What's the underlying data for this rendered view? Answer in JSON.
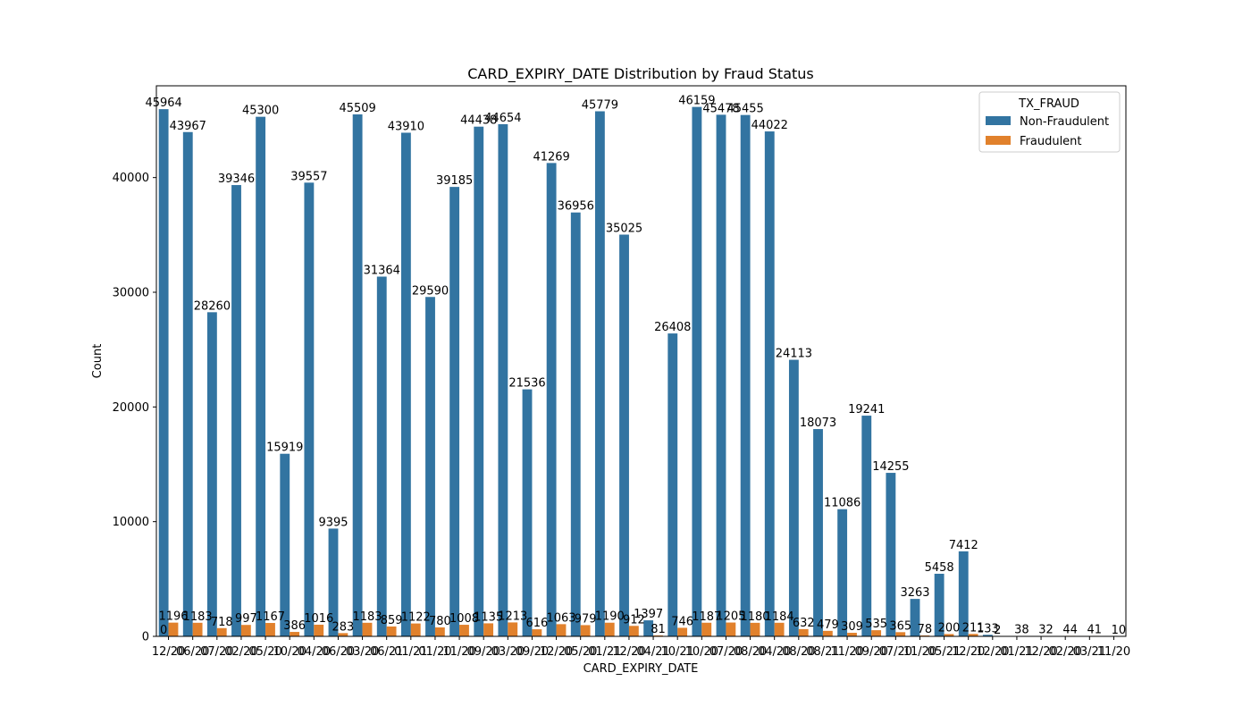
{
  "chart_data": {
    "type": "bar",
    "title": "CARD_EXPIRY_DATE Distribution by Fraud Status",
    "xlabel": "CARD_EXPIRY_DATE",
    "ylabel": "Count",
    "ylim": [
      0,
      48000
    ],
    "yticks": [
      0,
      10000,
      20000,
      30000,
      40000
    ],
    "grid": false,
    "legend": {
      "title": "TX_FRAUD",
      "placement": "top-right"
    },
    "categories": [
      "12/20",
      "06/20",
      "07/20",
      "02/20",
      "05/20",
      "10/20",
      "04/20",
      "06/20",
      "03/20",
      "06/21",
      "01/21",
      "01/20",
      "11/20",
      "09/20",
      "03/20",
      "09/20",
      "12/20",
      "05/20",
      "01/21",
      "12/20",
      "04/21",
      "10/21",
      "10/20",
      "07/20",
      "08/20",
      "04/20",
      "08/20",
      "08/21",
      "11/20",
      "09/20",
      "07/20",
      "11/20",
      "05/21",
      "12/20",
      "12/20",
      "01/21",
      "12/20",
      "02/20",
      "03/21",
      "11/20"
    ],
    "series": [
      {
        "name": "Non-Fraudulent",
        "color": "#3274a1",
        "values": [
          45964,
          43967,
          28260,
          39346,
          45300,
          15919,
          39557,
          9395,
          45509,
          31364,
          43910,
          29590,
          39185,
          44438,
          44654,
          21536,
          41269,
          36956,
          45779,
          35025,
          1397,
          26408,
          46159,
          45478,
          45455,
          44022,
          24113,
          18073,
          11086,
          19241,
          14255,
          3263,
          5458,
          7412,
          133,
          0,
          0,
          0,
          0,
          0
        ],
        "labels": [
          "45964",
          "43967",
          "28260",
          "39346",
          "45300",
          "15919",
          "39557",
          "9395",
          "45509",
          "31364",
          "43910",
          "29590",
          "39185",
          "44438",
          "44654",
          "21536",
          "41269",
          "36956",
          "45779",
          "35025",
          "1397",
          "26408",
          "46159",
          "45478",
          "45455",
          "44022",
          "24113",
          "18073",
          "11086",
          "19241",
          "14255",
          "3263",
          "5458",
          "7412",
          "133",
          "",
          "",
          "",
          "",
          ""
        ]
      },
      {
        "name": "Fraudulent",
        "color": "#e1812c",
        "values": [
          1196,
          1183,
          718,
          997,
          1167,
          386,
          1016,
          283,
          1183,
          859,
          1122,
          780,
          1008,
          1135,
          1213,
          616,
          1063,
          979,
          1190,
          912,
          81,
          746,
          1187,
          1205,
          1180,
          1184,
          632,
          479,
          309,
          535,
          365,
          78,
          200,
          211,
          2,
          38,
          32,
          44,
          41,
          10
        ],
        "labels": [
          "1196",
          "1183",
          "718",
          "997",
          "1167",
          "386",
          "1016",
          "283",
          "1183",
          "859",
          "1122",
          "780",
          "1008",
          "1135",
          "1213",
          "616",
          "1063",
          "979",
          "1190",
          "912",
          "81",
          "746",
          "1187",
          "1205",
          "1180",
          "1184",
          "632",
          "479",
          "309",
          "535",
          "365",
          "78",
          "200",
          "211",
          "2",
          "38",
          "32",
          "44",
          "41",
          "10"
        ]
      }
    ],
    "extra_labels": [
      {
        "category_index": 0,
        "text": "0"
      }
    ]
  }
}
